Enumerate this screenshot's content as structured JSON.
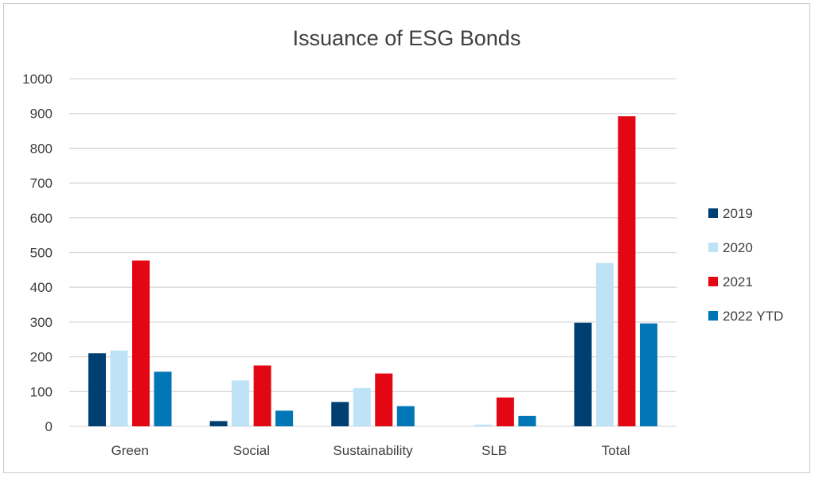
{
  "chart_data": {
    "type": "bar",
    "title": "Issuance of ESG Bonds",
    "xlabel": "",
    "ylabel": "",
    "ylim": [
      0,
      1000
    ],
    "yticks": [
      0,
      100,
      200,
      300,
      400,
      500,
      600,
      700,
      800,
      900,
      1000
    ],
    "grid": true,
    "legend_position": "right",
    "categories": [
      "Green",
      "Social",
      "Sustainability",
      "SLB",
      "Total"
    ],
    "series": [
      {
        "name": "2019",
        "color": "#003f72",
        "values": [
          210,
          15,
          70,
          0,
          298
        ]
      },
      {
        "name": "2020",
        "color": "#bfe3f6",
        "values": [
          218,
          132,
          110,
          5,
          470
        ]
      },
      {
        "name": "2021",
        "color": "#e30613",
        "values": [
          477,
          175,
          152,
          83,
          892
        ]
      },
      {
        "name": "2022 YTD",
        "color": "#0076b6",
        "values": [
          157,
          45,
          58,
          30,
          296
        ]
      }
    ]
  }
}
